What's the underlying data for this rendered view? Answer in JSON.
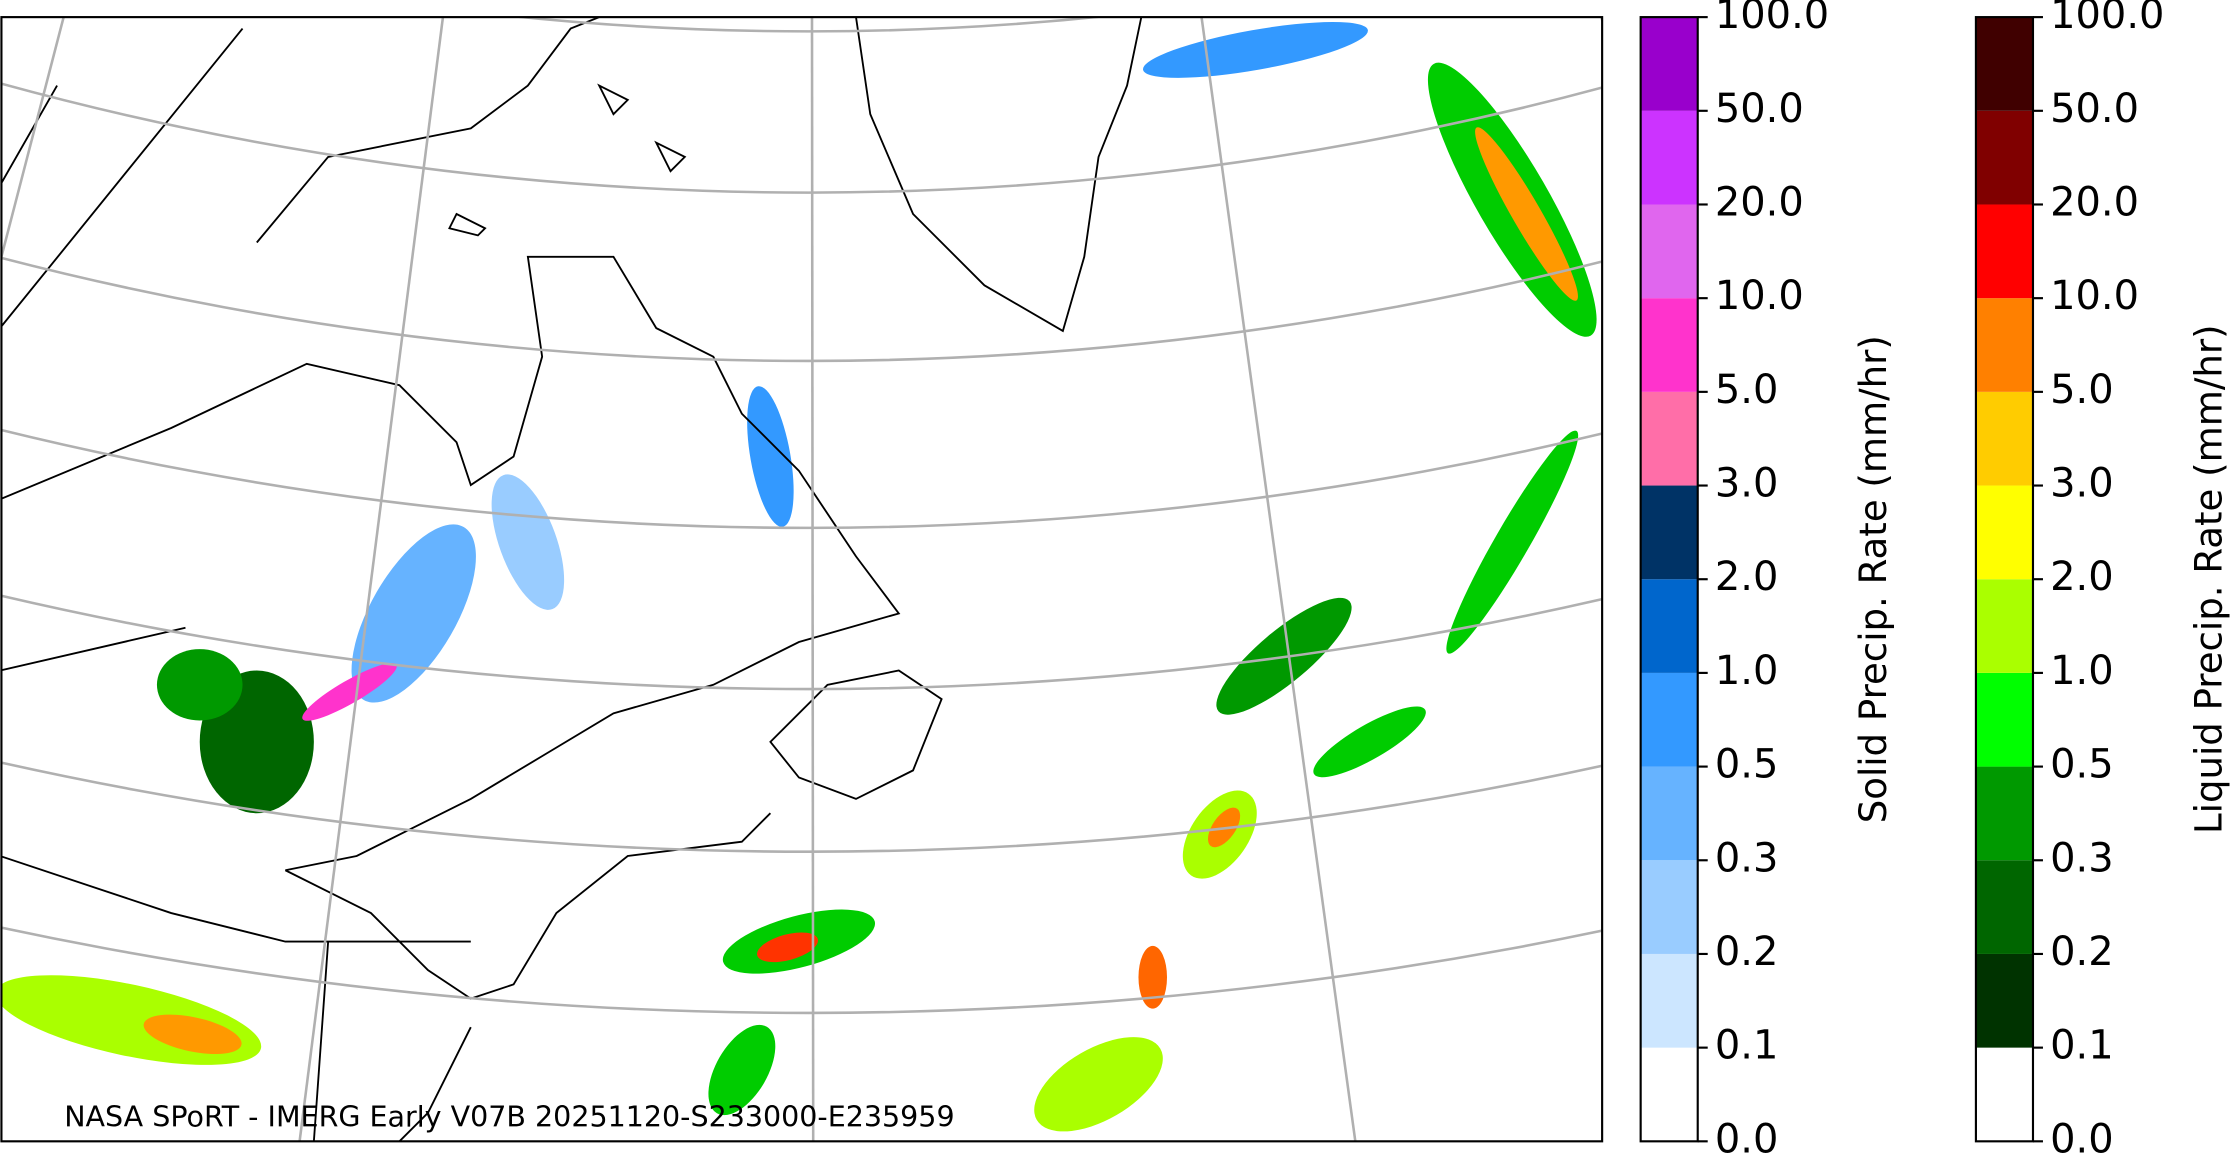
{
  "map": {
    "credit": "NASA SPoRT - IMERG Early V07B 20251120-S233000-E235959"
  },
  "colorbars": [
    {
      "label": "Solid Precip. Rate (mm/hr)",
      "ticks": [
        {
          "value": 0,
          "label": "0.0"
        },
        {
          "value": 0.1,
          "label": "0.1"
        },
        {
          "value": 0.2,
          "label": "0.2"
        },
        {
          "value": 0.3,
          "label": "0.3"
        },
        {
          "value": 0.5,
          "label": "0.5"
        },
        {
          "value": 1,
          "label": "1.0"
        },
        {
          "value": 2,
          "label": "2.0"
        },
        {
          "value": 3,
          "label": "3.0"
        },
        {
          "value": 5,
          "label": "5.0"
        },
        {
          "value": 10,
          "label": "10.0"
        },
        {
          "value": 20,
          "label": "20.0"
        },
        {
          "value": 50,
          "label": "50.0"
        },
        {
          "value": 100,
          "label": "100.0"
        }
      ],
      "colors": [
        "#ffffff",
        "#cce6ff",
        "#99ccff",
        "#66b3ff",
        "#3399ff",
        "#0066cc",
        "#003366",
        "#ff6ea8",
        "#ff33cc",
        "#e066ee",
        "#cc33ff",
        "#9900cc"
      ]
    },
    {
      "label": "Liquid Precip. Rate (mm/hr)",
      "ticks": [
        {
          "value": 0,
          "label": "0.0"
        },
        {
          "value": 0.1,
          "label": "0.1"
        },
        {
          "value": 0.2,
          "label": "0.2"
        },
        {
          "value": 0.3,
          "label": "0.3"
        },
        {
          "value": 0.5,
          "label": "0.5"
        },
        {
          "value": 1,
          "label": "1.0"
        },
        {
          "value": 2,
          "label": "2.0"
        },
        {
          "value": 3,
          "label": "3.0"
        },
        {
          "value": 5,
          "label": "5.0"
        },
        {
          "value": 10,
          "label": "10.0"
        },
        {
          "value": 20,
          "label": "20.0"
        },
        {
          "value": 50,
          "label": "50.0"
        },
        {
          "value": 100,
          "label": "100.0"
        }
      ],
      "colors": [
        "#ffffff",
        "#003300",
        "#006600",
        "#009900",
        "#00ff00",
        "#aaff00",
        "#ffff00",
        "#ffcc00",
        "#ff8000",
        "#ff0000",
        "#800000",
        "#400000"
      ]
    }
  ]
}
